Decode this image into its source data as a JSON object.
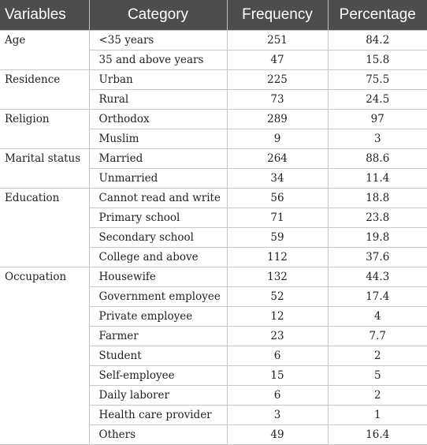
{
  "table": {
    "headers": [
      "Variables",
      "Category",
      "Frequency",
      "Percentage"
    ],
    "groups": [
      {
        "variable": "Age",
        "rows": [
          {
            "category": "<35 years",
            "frequency": "251",
            "percentage": "84.2"
          },
          {
            "category": "35 and above years",
            "frequency": "47",
            "percentage": "15.8"
          }
        ]
      },
      {
        "variable": "Residence",
        "rows": [
          {
            "category": "Urban",
            "frequency": "225",
            "percentage": "75.5"
          },
          {
            "category": "Rural",
            "frequency": "73",
            "percentage": "24.5"
          }
        ]
      },
      {
        "variable": "Religion",
        "rows": [
          {
            "category": "Orthodox",
            "frequency": "289",
            "percentage": "97"
          },
          {
            "category": "Muslim",
            "frequency": "9",
            "percentage": "3"
          }
        ]
      },
      {
        "variable": "Marital status",
        "rows": [
          {
            "category": "Married",
            "frequency": "264",
            "percentage": "88.6"
          },
          {
            "category": "Unmarried",
            "frequency": "34",
            "percentage": "11.4"
          }
        ]
      },
      {
        "variable": "Education",
        "rows": [
          {
            "category": "Cannot read and write",
            "frequency": "56",
            "percentage": "18.8"
          },
          {
            "category": "Primary school",
            "frequency": "71",
            "percentage": "23.8"
          },
          {
            "category": "Secondary school",
            "frequency": "59",
            "percentage": "19.8"
          },
          {
            "category": "College and above",
            "frequency": "112",
            "percentage": "37.6"
          }
        ]
      },
      {
        "variable": "Occupation",
        "rows": [
          {
            "category": "Housewife",
            "frequency": "132",
            "percentage": "44.3"
          },
          {
            "category": "Government employee",
            "frequency": "52",
            "percentage": "17.4"
          },
          {
            "category": "Private employee",
            "frequency": "12",
            "percentage": "4"
          },
          {
            "category": "Farmer",
            "frequency": "23",
            "percentage": "7.7"
          },
          {
            "category": "Student",
            "frequency": "6",
            "percentage": "2"
          },
          {
            "category": "Self-employee",
            "frequency": "15",
            "percentage": "5"
          },
          {
            "category": "Daily laborer",
            "frequency": "6",
            "percentage": "2"
          },
          {
            "category": "Health care provider",
            "frequency": "3",
            "percentage": "1"
          },
          {
            "category": "Others",
            "frequency": "49",
            "percentage": "16.4"
          }
        ]
      }
    ]
  }
}
